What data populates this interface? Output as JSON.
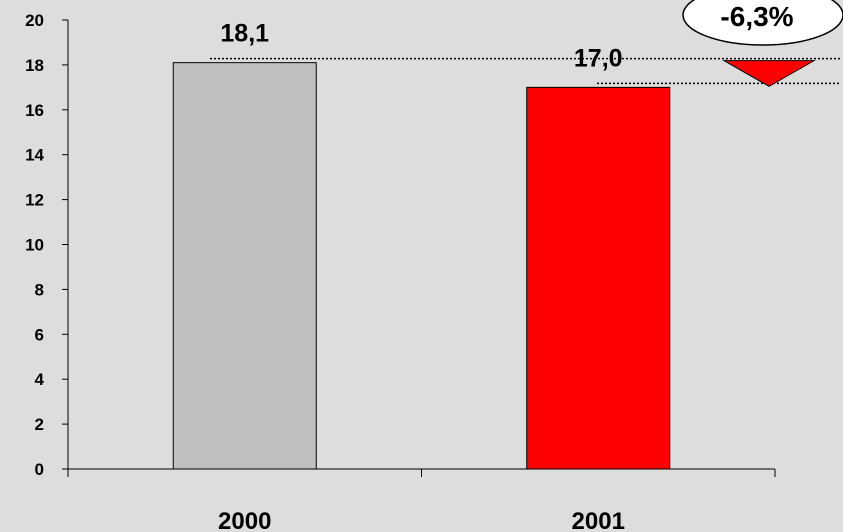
{
  "chart_data": {
    "type": "bar",
    "categories": [
      "2000",
      "2001"
    ],
    "values": [
      18.1,
      17.0
    ],
    "value_labels": [
      "18,1",
      "17,0"
    ],
    "bar_colors": [
      "#c0c0c0",
      "#ff0000"
    ],
    "ylim": [
      0,
      20
    ],
    "yticks": [
      0,
      2,
      4,
      6,
      8,
      10,
      12,
      14,
      16,
      18,
      20
    ],
    "grid": false,
    "title": "",
    "xlabel": "",
    "ylabel": "",
    "annotation": {
      "text": "-6,3%",
      "arrow_color": "#ff0000",
      "direction": "down"
    }
  }
}
